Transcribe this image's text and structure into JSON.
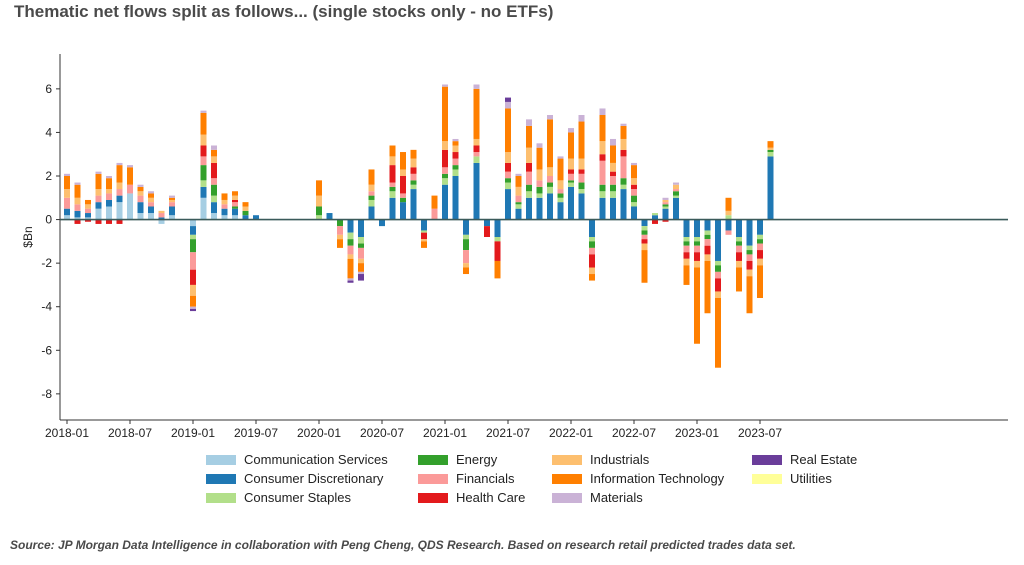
{
  "title": "Thematic net flows split as follows... (single stocks only - no ETFs)",
  "source": "Source: JP Morgan Data Intelligence in collaboration with Peng Cheng, QDS Research. Based on research retail predicted trades data set.",
  "chart_data": {
    "type": "bar",
    "stacked": true,
    "ylabel": "$Bn",
    "ylim": [
      -9.2,
      7.6
    ],
    "yticks": [
      -8,
      -6,
      -4,
      -2,
      0,
      2,
      4,
      6
    ],
    "xtick_labels": [
      "2018-01",
      "2018-07",
      "2019-01",
      "2019-07",
      "2020-01",
      "2020-07",
      "2021-01",
      "2021-07",
      "2022-01",
      "2022-07",
      "2023-01",
      "2023-07"
    ],
    "x_months": [
      "2018-01",
      "2018-02",
      "2018-03",
      "2018-04",
      "2018-05",
      "2018-06",
      "2018-07",
      "2018-08",
      "2018-09",
      "2018-10",
      "2018-11",
      "2018-12",
      "2019-01",
      "2019-02",
      "2019-03",
      "2019-04",
      "2019-05",
      "2019-06",
      "2019-07",
      "2019-08",
      "2019-09",
      "2019-10",
      "2019-11",
      "2019-12",
      "2020-01",
      "2020-02",
      "2020-03",
      "2020-04",
      "2020-05",
      "2020-06",
      "2020-07",
      "2020-08",
      "2020-09",
      "2020-10",
      "2020-11",
      "2020-12",
      "2021-01",
      "2021-02",
      "2021-03",
      "2021-04",
      "2021-05",
      "2021-06",
      "2021-07",
      "2021-08",
      "2021-09",
      "2021-10",
      "2021-11",
      "2021-12",
      "2022-01",
      "2022-02",
      "2022-03",
      "2022-04",
      "2022-05",
      "2022-06",
      "2022-07",
      "2022-08",
      "2022-09",
      "2022-10",
      "2022-11",
      "2022-12",
      "2023-01",
      "2023-02",
      "2023-03",
      "2023-04",
      "2023-05",
      "2023-06",
      "2023-07",
      "2023-08"
    ],
    "grid": false,
    "legend_position": "bottom",
    "series": [
      {
        "name": "Communication Services",
        "color": "#a6cee3",
        "values": [
          0.2,
          0.1,
          0.1,
          0.5,
          0.6,
          0.8,
          1.2,
          0.3,
          0.3,
          -0.2,
          0.2,
          0,
          -0.3,
          1,
          0.3,
          0.2,
          0.2,
          0,
          0,
          0,
          0,
          0,
          0,
          0,
          0,
          0,
          0,
          0,
          0,
          0,
          0,
          0,
          0,
          0,
          0,
          0,
          0,
          0,
          0,
          0,
          0,
          0,
          0,
          0,
          0,
          0,
          0,
          0,
          0,
          0,
          0,
          0,
          0,
          0,
          0,
          0,
          0,
          0,
          0,
          0,
          0,
          0,
          0,
          0,
          0,
          0,
          0,
          0
        ]
      },
      {
        "name": "Consumer Discretionary",
        "color": "#1f78b4",
        "values": [
          0.3,
          0.3,
          0.2,
          0.3,
          0.3,
          0.3,
          0,
          0.5,
          0.3,
          0.1,
          0.4,
          0,
          -0.4,
          0.5,
          0.5,
          0.3,
          0.3,
          0.2,
          0.2,
          0,
          0,
          0,
          0,
          0,
          0,
          0.3,
          0,
          -0.6,
          -0.8,
          0.6,
          -0.3,
          1,
          0.8,
          1.4,
          -0.5,
          0,
          1.6,
          2,
          -0.7,
          2.6,
          -0.3,
          -0.8,
          1.4,
          0.5,
          1,
          1,
          1.2,
          0.8,
          1.5,
          1.2,
          -0.8,
          1,
          1,
          1.4,
          0.6,
          -0.3,
          0.2,
          0.5,
          1,
          -0.8,
          -0.8,
          -0.5,
          -1.9,
          -0.5,
          -0.8,
          -1.2,
          -0.7,
          2.9
        ]
      },
      {
        "name": "Consumer Staples",
        "color": "#b2df8a",
        "values": [
          0,
          0,
          0,
          0,
          0,
          0,
          0,
          0,
          0,
          0,
          0,
          0,
          -0.2,
          0.3,
          0.3,
          0,
          0,
          0,
          0,
          0,
          0,
          0,
          0,
          0,
          0.2,
          0,
          0,
          -0.3,
          -0.3,
          0.3,
          0,
          0.3,
          0,
          0.2,
          -0.1,
          0,
          0.3,
          0.3,
          -0.2,
          0.3,
          0,
          -0.2,
          0.3,
          0.2,
          0.3,
          0.2,
          0.3,
          0.2,
          0.2,
          0.2,
          -0.2,
          0.3,
          0.3,
          0.2,
          0.2,
          -0.2,
          0.1,
          0.1,
          0.1,
          -0.2,
          -0.2,
          -0.2,
          -0.2,
          0.2,
          -0.2,
          -0.2,
          -0.2,
          0.2
        ]
      },
      {
        "name": "Energy",
        "color": "#33a02c",
        "values": [
          0,
          0,
          0,
          0,
          0,
          0,
          0,
          0,
          0,
          0,
          0,
          0,
          -0.6,
          0.7,
          0.5,
          0,
          0.1,
          0.2,
          0,
          0,
          0,
          0,
          0,
          0,
          0.4,
          0,
          -0.3,
          -0.3,
          -0.2,
          0.2,
          0,
          0.2,
          0.2,
          0.2,
          0,
          0,
          0.2,
          0.2,
          -0.5,
          0,
          0,
          0,
          0.2,
          0.1,
          0.3,
          0.3,
          0.2,
          0.2,
          0.1,
          0.3,
          -0.3,
          0.3,
          0.3,
          0.3,
          0.3,
          -0.2,
          0,
          0.1,
          0.2,
          -0.2,
          -0.2,
          -0.2,
          -0.3,
          0,
          -0.2,
          -0.2,
          -0.2,
          0.1
        ]
      },
      {
        "name": "Financials",
        "color": "#fb9a99",
        "values": [
          0.5,
          0.3,
          0.2,
          0.3,
          0.3,
          0.3,
          0.4,
          0.3,
          0.2,
          0.2,
          0.2,
          0,
          -0.8,
          0.4,
          0.3,
          0.2,
          0.2,
          0,
          0,
          0,
          0,
          0,
          0,
          0,
          0,
          0,
          -0.4,
          -0.4,
          -0.5,
          0.2,
          0,
          0.2,
          0.2,
          0.3,
          0,
          0.5,
          0.3,
          0.3,
          -0.6,
          0.2,
          0,
          0,
          0.3,
          0.3,
          0.6,
          0.3,
          0.3,
          0.2,
          0.3,
          0.4,
          -0.3,
          1.1,
          0.4,
          1,
          0.3,
          -0.2,
          0,
          0.1,
          0.1,
          -0.3,
          -0.3,
          -0.3,
          -0.3,
          -0.2,
          -0.3,
          -0.3,
          -0.3,
          0
        ]
      },
      {
        "name": "Health Care",
        "color": "#e31a1c",
        "values": [
          0,
          -0.2,
          -0.1,
          -0.2,
          -0.2,
          -0.2,
          0,
          0,
          0,
          0,
          0,
          0,
          -0.7,
          0.5,
          0.7,
          0,
          0.1,
          0,
          0,
          0,
          0,
          0,
          0,
          0,
          0,
          0,
          0,
          0,
          0,
          0,
          0,
          0.8,
          0.8,
          0.3,
          -0.3,
          0,
          0.8,
          0.3,
          0,
          0.3,
          -0.5,
          -0.9,
          0.4,
          0,
          0.4,
          0,
          0,
          0,
          0.2,
          0.2,
          -0.6,
          0.3,
          0.2,
          0.3,
          0.2,
          -0.2,
          -0.2,
          -0.1,
          0,
          -0.3,
          -0.4,
          -0.4,
          -0.6,
          0,
          -0.4,
          -0.4,
          -0.4,
          0
        ]
      },
      {
        "name": "Industrials",
        "color": "#fdbf6f",
        "values": [
          0.4,
          0.3,
          0.2,
          0.3,
          0.2,
          0.3,
          0,
          0.2,
          0.2,
          0.1,
          0.1,
          0,
          -0.5,
          0.5,
          0.3,
          0.2,
          0.2,
          0.2,
          0,
          0,
          0,
          0,
          0,
          0,
          0.5,
          0,
          -0.2,
          -0.2,
          -0.2,
          0.3,
          0,
          0.4,
          0.3,
          0.4,
          -0.1,
          0,
          0.4,
          0.3,
          -0.2,
          0.3,
          0,
          0,
          0.5,
          0.4,
          0.7,
          0.5,
          0.4,
          0.4,
          0.5,
          0.5,
          -0.3,
          0.6,
          0.4,
          0.5,
          0.3,
          -0.3,
          0,
          0.1,
          0.2,
          -0.3,
          -0.3,
          -0.3,
          -0.3,
          0.2,
          -0.3,
          -0.3,
          -0.3,
          0.1
        ]
      },
      {
        "name": "Information Technology",
        "color": "#ff7f00",
        "values": [
          0.6,
          0.6,
          0.2,
          0.7,
          0.5,
          0.8,
          0.8,
          0.2,
          0.2,
          0,
          0.1,
          0,
          -0.5,
          1,
          0.3,
          0.3,
          0.2,
          0.2,
          0,
          0,
          0,
          0,
          0,
          0,
          0.7,
          0,
          -0.4,
          -0.9,
          -0.4,
          0.7,
          0,
          0.5,
          0.8,
          0.4,
          -0.3,
          0.6,
          2.5,
          0.2,
          -0.3,
          2.3,
          0,
          -0.8,
          2,
          0.5,
          1,
          1,
          2.2,
          1,
          1.2,
          1.7,
          -0.3,
          1.2,
          0.8,
          0.6,
          0.6,
          -1.5,
          0,
          0,
          0,
          -0.9,
          -3.5,
          -2.4,
          -3.2,
          0.6,
          -1.1,
          -1.7,
          -1.5,
          0.3
        ]
      },
      {
        "name": "Materials",
        "color": "#cab2d6",
        "values": [
          0.1,
          0.1,
          0,
          0.1,
          0.1,
          0.1,
          0.1,
          0.1,
          0.1,
          0,
          0.1,
          0,
          -0.1,
          0.1,
          0.2,
          0,
          0,
          0,
          0,
          0,
          0,
          0,
          0,
          0,
          0,
          0,
          0,
          -0.1,
          -0.1,
          0,
          0,
          0,
          0,
          0,
          0,
          0,
          0.1,
          0.1,
          0,
          0.2,
          0,
          0,
          0.3,
          0.1,
          0.3,
          0.2,
          0.2,
          0.1,
          0.2,
          0.3,
          0,
          0.3,
          0.3,
          0.1,
          0.1,
          0,
          0,
          0.1,
          0.1,
          0,
          0,
          0,
          0,
          0,
          0,
          0,
          0,
          0
        ]
      },
      {
        "name": "Real Estate",
        "color": "#6a3d9a",
        "values": [
          0,
          0,
          0,
          0,
          0,
          0,
          0,
          0,
          0,
          0,
          0,
          0,
          -0.1,
          0,
          0,
          0,
          0,
          0,
          0,
          0,
          0,
          0,
          0,
          0,
          0,
          0,
          0,
          -0.1,
          -0.3,
          0,
          0,
          0,
          0,
          0,
          0,
          0,
          0,
          0,
          0,
          0,
          0,
          0,
          0.2,
          0,
          0,
          0,
          0,
          0,
          0,
          0,
          0,
          0,
          0,
          0,
          0,
          0,
          0,
          0,
          0,
          0,
          0,
          0,
          0,
          0,
          0,
          0,
          0,
          0
        ]
      },
      {
        "name": "Utilities",
        "color": "#ffff99",
        "values": [
          0,
          0,
          0,
          0,
          0,
          0,
          0,
          0,
          0,
          0,
          0,
          0,
          0,
          0,
          0,
          0,
          0,
          0,
          0,
          0,
          0,
          0,
          0,
          0,
          0,
          0,
          0,
          0,
          0,
          0,
          0,
          0,
          0,
          0,
          0,
          0,
          0,
          0,
          0,
          0,
          0,
          0,
          0,
          0,
          0,
          0,
          0,
          0,
          0,
          0,
          0,
          0,
          0,
          0,
          0,
          0,
          0,
          0,
          0,
          0,
          0,
          0,
          0,
          0,
          0,
          0,
          0,
          0
        ]
      }
    ]
  }
}
